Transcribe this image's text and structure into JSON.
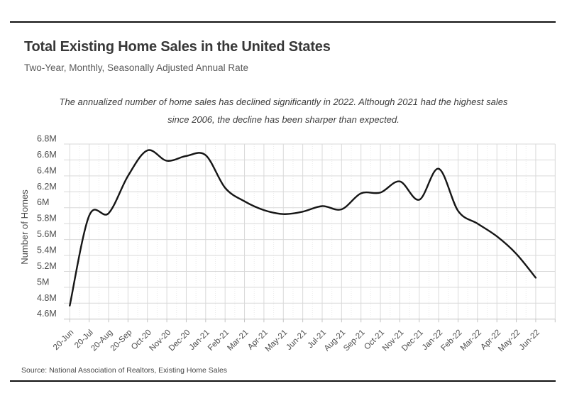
{
  "page": {
    "title": "Total Existing Home Sales in the United States",
    "subtitle": "Two-Year, Monthly, Seasonally Adjusted Annual Rate",
    "annotation": {
      "line1": "The annualized number of home sales has declined significantly in 2022. Although 2021 had the highest sales",
      "line2": "since 2006, the decline has been sharper than expected."
    },
    "source": "Source:  National Association of Realtors, Existing Home Sales"
  },
  "chart_data": {
    "type": "line",
    "smoothed": true,
    "title": "Total Existing Home Sales in the United States",
    "subtitle": "Two-Year, Monthly, Seasonally Adjusted Annual Rate",
    "xlabel": "",
    "ylabel": "Number of Homes",
    "unit": "millions of homes (seasonally adjusted annual rate)",
    "categories": [
      "20-Jun",
      "20-Jul",
      "20-Aug",
      "20-Sep",
      "Oct-20",
      "Nov-20",
      "Dec-20",
      "Jan-21",
      "Feb-21",
      "Mar-21",
      "Apr-21",
      "May-21",
      "Jun-21",
      "Jul-21",
      "Aug-21",
      "Sep-21",
      "Oct-21",
      "Nov-21",
      "Dec-21",
      "Jan-22",
      "Feb-22",
      "Mar-22",
      "Apr-22",
      "May-22",
      "Jun-22"
    ],
    "values": [
      4.77,
      5.9,
      5.93,
      6.4,
      6.72,
      6.59,
      6.65,
      6.66,
      6.25,
      6.08,
      5.97,
      5.92,
      5.95,
      6.02,
      5.98,
      6.18,
      6.19,
      6.33,
      6.1,
      6.49,
      5.96,
      5.8,
      5.64,
      5.42,
      5.12
    ],
    "ylim": [
      4.6,
      6.8
    ],
    "ytick_labels": [
      "6.8M",
      "6.6M",
      "6.4M",
      "6.2M",
      "6M",
      "5.8M",
      "5.6M",
      "5.4M",
      "5.2M",
      "5M",
      "4.8M",
      "4.6M"
    ],
    "ytick_values": [
      6.8,
      6.6,
      6.4,
      6.2,
      6.0,
      5.8,
      5.6,
      5.4,
      5.2,
      5.0,
      4.8,
      4.6
    ],
    "grid": true,
    "legend": "none",
    "line_color": "#161616",
    "grid_color": "#d9d9d9",
    "minor_grid_color": "#ebebeb",
    "axis_color": "#c4c4c4",
    "tick_label_color": "#4d4d4d"
  }
}
